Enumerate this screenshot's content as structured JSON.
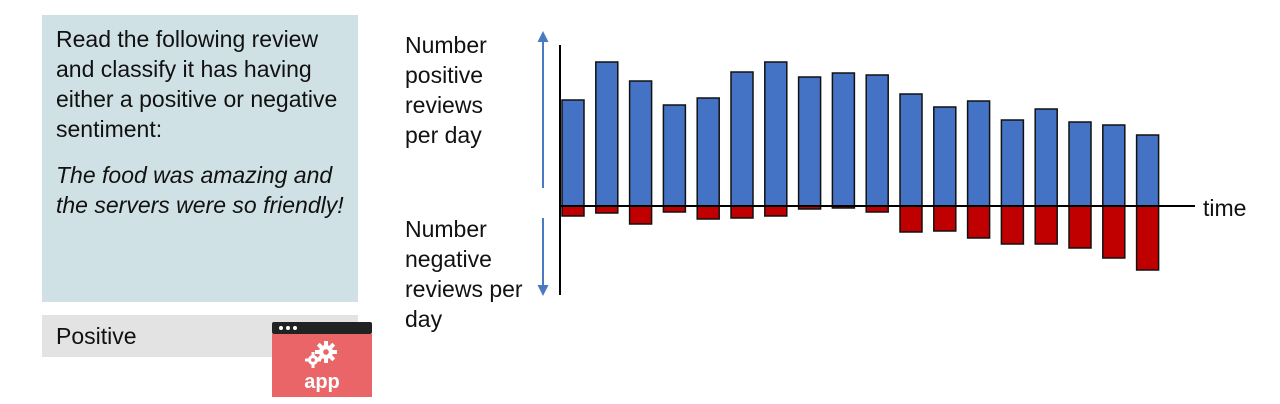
{
  "prompt": {
    "instruction": "Read the following review and classify it has having either a positive or negative sentiment:",
    "example": "The food was amazing and the servers were so friendly!"
  },
  "output": {
    "label": "Positive"
  },
  "app_icon": {
    "icon": "app-gear-icon",
    "label": "app",
    "color": "#e96567"
  },
  "colors": {
    "positive_bar": "#4472c4",
    "negative_bar": "#c00000",
    "arrow": "#4a7ac0",
    "prompt_box": "#cfe1e5",
    "output_box": "#e3e3e3"
  },
  "chart_data": {
    "type": "bar",
    "positive_label": "Number positive reviews per day",
    "negative_label": "Number negative reviews per day",
    "xlabel": "time",
    "series": [
      {
        "values": [
          106,
          144,
          125,
          101,
          108,
          134,
          144,
          129,
          133,
          131,
          112,
          99,
          105,
          86,
          97,
          84,
          81,
          71
        ]
      },
      {
        "values": [
          10,
          7,
          18,
          6,
          13,
          12,
          10,
          3,
          2,
          6,
          26,
          25,
          32,
          38,
          38,
          42,
          52,
          64
        ]
      }
    ]
  }
}
